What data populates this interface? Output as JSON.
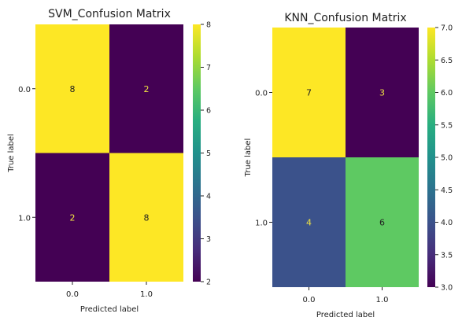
{
  "chart_data": [
    {
      "type": "heatmap",
      "title": "SVM_Confusion Matrix",
      "xlabel": "Predicted label",
      "ylabel": "True label",
      "x_ticks": [
        "0.0",
        "1.0"
      ],
      "y_ticks": [
        "0.0",
        "1.0"
      ],
      "matrix": [
        [
          8,
          2
        ],
        [
          2,
          8
        ]
      ],
      "colormap": "viridis",
      "colorbar": {
        "min": 2,
        "max": 8,
        "ticks": [
          "8",
          "7",
          "6",
          "5",
          "4",
          "3",
          "2"
        ]
      }
    },
    {
      "type": "heatmap",
      "title": "KNN_Confusion Matrix",
      "xlabel": "Predicted label",
      "ylabel": "True label",
      "x_ticks": [
        "0.0",
        "1.0"
      ],
      "y_ticks": [
        "0.0",
        "1.0"
      ],
      "matrix": [
        [
          7,
          3
        ],
        [
          4,
          6
        ]
      ],
      "colormap": "viridis",
      "colorbar": {
        "min": 3.0,
        "max": 7.0,
        "ticks": [
          "7.0",
          "6.5",
          "6.0",
          "5.5",
          "5.0",
          "4.5",
          "4.0",
          "3.5",
          "3.0"
        ]
      }
    }
  ]
}
